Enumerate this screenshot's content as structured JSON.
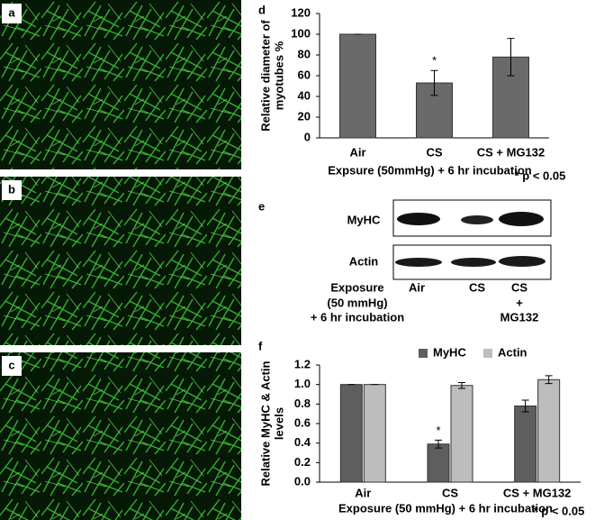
{
  "micrographs": [
    "a",
    "b",
    "c"
  ],
  "blot": {
    "label": "e",
    "rows": [
      "MyHC",
      "Actin"
    ],
    "lanes": [
      [
        "Air"
      ],
      [
        "CS"
      ],
      [
        "CS",
        "+",
        "MG132"
      ]
    ],
    "condition": [
      "Exposure",
      "(50 mmHg)",
      "+ 6 hr incubation"
    ]
  },
  "chart_data": [
    {
      "type": "bar",
      "label": "d",
      "ylabel": [
        "Relative diameter of",
        "myotubes %"
      ],
      "xlabel": "Expsure (50mmHg) + 6 hr incubation",
      "note": "* p < 0.05",
      "categories": [
        "Air",
        "CS",
        "CS + MG132"
      ],
      "values": [
        100,
        53,
        78
      ],
      "errors": [
        0,
        12,
        18
      ],
      "significance": [
        null,
        "*",
        null
      ],
      "color": "#6a6a6a",
      "ylim": [
        0,
        120
      ],
      "yticks": [
        0,
        20,
        40,
        60,
        80,
        100,
        120
      ]
    },
    {
      "type": "bar",
      "label": "f",
      "ylabel": [
        "Relative MyHC & Actin",
        "levels"
      ],
      "xlabel": "Exposure (50 mmHg) + 6 hr incubation",
      "note": "* p < 0.05",
      "categories": [
        "Air",
        "CS",
        "CS + MG132"
      ],
      "series": [
        {
          "name": "MyHC",
          "color": "#5e5e5e",
          "values": [
            1.0,
            0.39,
            0.78
          ],
          "errors": [
            0,
            0.04,
            0.06
          ],
          "significance": [
            null,
            "*",
            null
          ]
        },
        {
          "name": "Actin",
          "color": "#bdbdbd",
          "values": [
            1.0,
            0.99,
            1.05
          ],
          "errors": [
            0,
            0.03,
            0.04
          ]
        }
      ],
      "ylim": [
        0,
        1.2
      ],
      "yticks": [
        {
          "value": 0,
          "label": "0.0"
        },
        0.2,
        0.4,
        0.6,
        0.8,
        {
          "value": 1,
          "label": "1.0"
        },
        1.2
      ]
    }
  ]
}
